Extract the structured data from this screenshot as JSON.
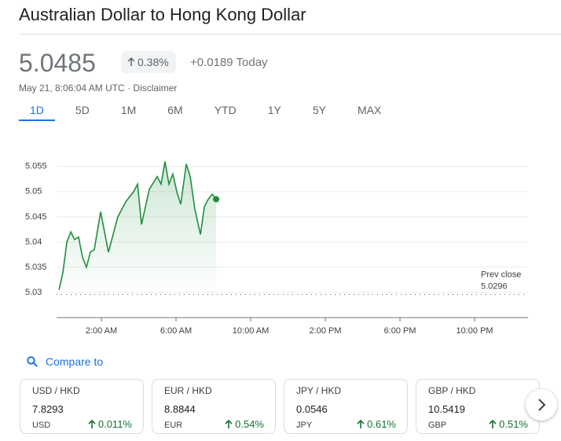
{
  "header": {
    "title": "Australian Dollar to Hong Kong Dollar",
    "price": "5.0485",
    "change_pct": "0.38%",
    "change_abs": "+0.0189 Today",
    "timestamp": "May 21, 8:06:04 AM UTC",
    "disclaimer": "Disclaimer"
  },
  "tabs": [
    "1D",
    "5D",
    "1M",
    "6M",
    "YTD",
    "1Y",
    "5Y",
    "MAX"
  ],
  "chart_data": {
    "type": "line",
    "color": "#1e8e3e",
    "x": [
      -0.27,
      -0.06,
      0.15,
      0.36,
      0.57,
      0.78,
      0.99,
      1.2,
      1.41,
      1.62,
      1.96,
      2.38,
      2.88,
      3.31,
      3.73,
      3.94,
      4.15,
      4.57,
      4.99,
      5.2,
      5.41,
      5.62,
      5.83,
      6.04,
      6.25,
      6.55,
      6.76,
      7.01,
      7.31,
      7.52,
      7.73,
      7.94,
      8.15
    ],
    "values": [
      5.0305,
      5.034,
      5.04,
      5.042,
      5.0405,
      5.041,
      5.037,
      5.035,
      5.038,
      5.0385,
      5.046,
      5.038,
      5.045,
      5.048,
      5.05,
      5.0515,
      5.0435,
      5.0505,
      5.053,
      5.0515,
      5.056,
      5.0515,
      5.0535,
      5.05,
      5.0475,
      5.0555,
      5.053,
      5.0465,
      5.0415,
      5.047,
      5.0485,
      5.0495,
      5.0485
    ],
    "xlim": [
      -0.4,
      24.86
    ],
    "ylim": [
      5.025,
      5.0584
    ],
    "xticks": [
      {
        "value": 2,
        "label": "2:00 AM"
      },
      {
        "value": 6,
        "label": "6:00 AM"
      },
      {
        "value": 10,
        "label": "10:00 AM"
      },
      {
        "value": 14,
        "label": "2:00 PM"
      },
      {
        "value": 18,
        "label": "6:00 PM"
      },
      {
        "value": 22,
        "label": "10:00 PM"
      }
    ],
    "yticks": [
      5.03,
      5.035,
      5.04,
      5.045,
      5.05,
      5.055
    ],
    "grid": true,
    "prev_close": {
      "label": "Prev close",
      "value": 5.0296
    }
  },
  "compare": {
    "label": "Compare to",
    "cards": [
      {
        "pair": "USD / HKD",
        "value": "7.8293",
        "currency": "USD",
        "change": "0.011%"
      },
      {
        "pair": "EUR / HKD",
        "value": "8.8844",
        "currency": "EUR",
        "change": "0.54%"
      },
      {
        "pair": "JPY / HKD",
        "value": "0.0546",
        "currency": "JPY",
        "change": "0.61%"
      },
      {
        "pair": "GBP / HKD",
        "value": "10.5419",
        "currency": "GBP",
        "change": "0.51%"
      }
    ]
  }
}
